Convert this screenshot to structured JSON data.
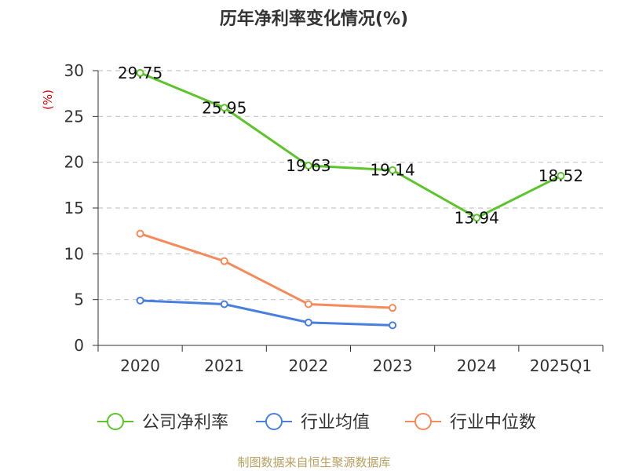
{
  "chart_data": {
    "type": "line",
    "title": "历年净利率变化情况(%)",
    "ylabel": "(%)",
    "xlabel": "",
    "categories": [
      "2020",
      "2021",
      "2022",
      "2023",
      "2024",
      "2025Q1"
    ],
    "ylim": [
      0,
      30
    ],
    "yticks": [
      0,
      5,
      10,
      15,
      20,
      25,
      30
    ],
    "grid": true,
    "legend_position": "bottom",
    "series": [
      {
        "name": "公司净利率",
        "color": "#5dc52b",
        "values": [
          29.75,
          25.95,
          19.63,
          19.14,
          13.94,
          18.52
        ],
        "labels": [
          "29.75",
          "25.95",
          "19.63",
          "19.14",
          "13.94",
          "18.52"
        ]
      },
      {
        "name": "行业均值",
        "color": "#4a7fe0",
        "values": [
          4.9,
          4.5,
          2.5,
          2.2,
          null,
          null
        ]
      },
      {
        "name": "行业中位数",
        "color": "#f58a5a",
        "values": [
          12.2,
          9.2,
          4.5,
          4.1,
          null,
          null
        ]
      }
    ]
  },
  "source": "制图数据来自恒生聚源数据库"
}
